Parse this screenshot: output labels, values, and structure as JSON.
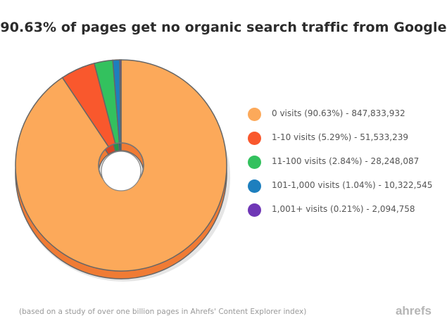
{
  "chart_data": {
    "type": "pie",
    "title": "90.63% of pages get no organic search traffic from Google",
    "slices": [
      {
        "label": "0 visits (90.63%) - 847,833,932",
        "value": 90.63,
        "color": "#fca95a",
        "side_color": "#f07b34"
      },
      {
        "label": "1-10 visits (5.29%) - 51,533,239",
        "value": 5.29,
        "color": "#f9582d",
        "side_color": "#d84523"
      },
      {
        "label": "11-100 visits (2.84%) - 28,248,087",
        "value": 2.84,
        "color": "#33c15e",
        "side_color": "#24964a"
      },
      {
        "label": "101-1,000 visits (1.04%) - 10,322,545",
        "value": 1.04,
        "color": "#1d7fbe",
        "side_color": "#145f8f"
      },
      {
        "label": "1,001+ visits (0.21%) - 2,094,758",
        "value": 0.21,
        "color": "#6f37b6",
        "side_color": "#52278a"
      }
    ],
    "legend_position": "right"
  },
  "footnote": "(based on a study of over one billion pages in Ahrefs' Content Explorer index)",
  "brand": "ahrefs"
}
